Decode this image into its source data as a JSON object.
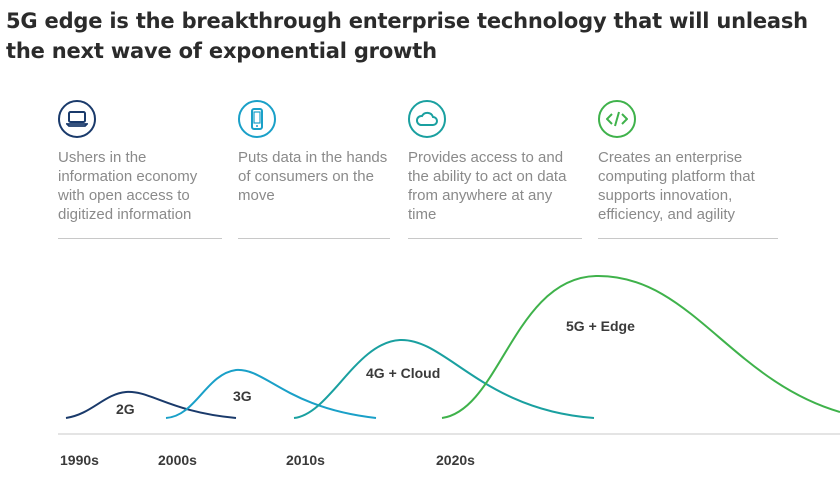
{
  "title": "5G edge is the breakthrough enterprise technology that will unleash the next wave of exponential growth",
  "columns": [
    {
      "icon": "laptop-icon",
      "color": "#1a3a6b",
      "description": "Ushers in the information economy with open access to digitized information"
    },
    {
      "icon": "mobile-phone-icon",
      "color": "#1aa0c8",
      "description": "Puts data in the hands of consumers on the move"
    },
    {
      "icon": "cloud-icon",
      "color": "#1aa0a0",
      "description": "Provides access to and the ability to act on data from anywhere at any time"
    },
    {
      "icon": "code-icon",
      "color": "#3fb24b",
      "description": "Creates an enterprise computing platform that supports innovation, efficiency, and agility"
    }
  ],
  "waves": [
    {
      "label": "2G",
      "color": "#1a3a6b"
    },
    {
      "label": "3G",
      "color": "#1aa0c8"
    },
    {
      "label": "4G + Cloud",
      "color": "#1aa0a0"
    },
    {
      "label": "5G + Edge",
      "color": "#3fb24b"
    }
  ],
  "timeline": [
    "1990s",
    "2000s",
    "2010s",
    "2020s"
  ]
}
